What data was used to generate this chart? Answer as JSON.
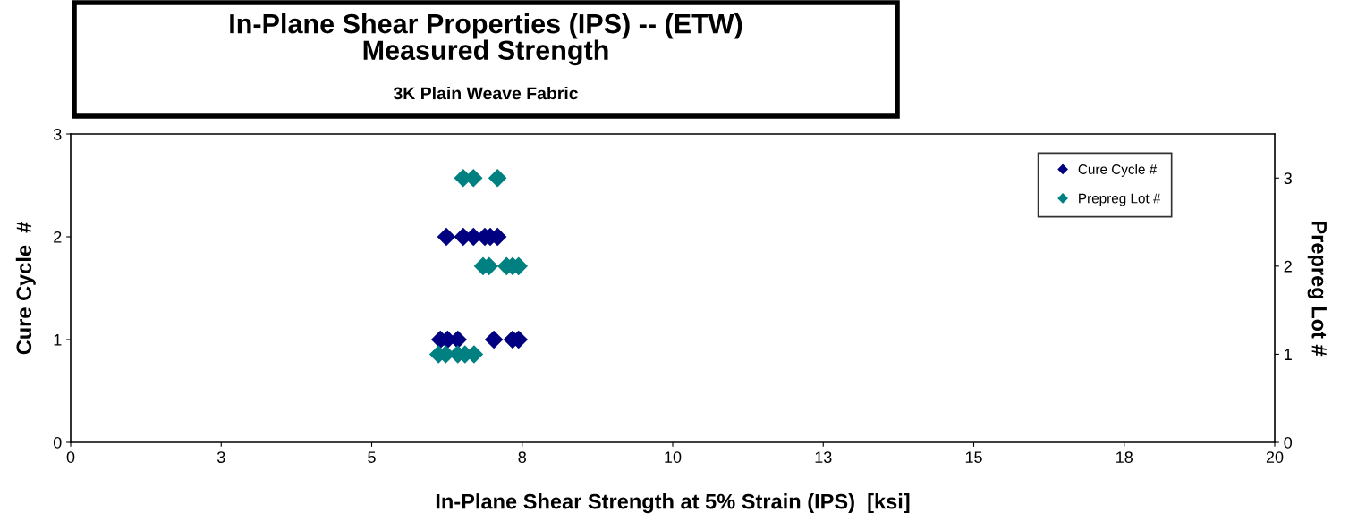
{
  "chart_data": {
    "type": "scatter",
    "title": "In-Plane Shear Properties (IPS) -- (ETW)\nMeasured Strength",
    "subtitle": "3K Plain Weave Fabric",
    "xlabel": "In-Plane Shear Strength at 5% Strain (IPS)  [ksi]",
    "ylabel": "Cure Cycle  #",
    "y2label": "Prepreg Lot #",
    "xlim": [
      0,
      20
    ],
    "xticks": [
      0,
      {
        "value": 2.5,
        "label": "3"
      },
      5,
      {
        "value": 7.5,
        "label": "8"
      },
      10,
      {
        "value": 12.5,
        "label": "13"
      },
      15,
      {
        "value": 17.5,
        "label": "18"
      },
      20
    ],
    "ylim": [
      0,
      3
    ],
    "yticks": [
      0,
      1,
      2,
      3
    ],
    "y2lim": [
      0,
      3.5
    ],
    "y2ticks": [
      0,
      1,
      2,
      3
    ],
    "marker": "diamond",
    "grid": false,
    "legend": "top right",
    "series": [
      {
        "name": "Cure Cycle #",
        "color": "#000080",
        "x": [
          6.24,
          6.52,
          6.69,
          6.88,
          6.97,
          7.09,
          6.14,
          6.26,
          6.43,
          7.03,
          7.27,
          7.34,
          7.44
        ],
        "values": [
          2,
          2,
          2,
          2,
          2,
          2,
          1,
          1,
          1,
          1,
          null,
          1,
          1
        ]
      },
      {
        "name": "Prepreg Lot #",
        "color": "#008080",
        "axis": "y2",
        "x": [
          6.52,
          6.69,
          7.09,
          6.85,
          6.95,
          7.24,
          7.34,
          7.44,
          6.11,
          6.23,
          6.43,
          6.55,
          6.7
        ],
        "values": [
          3,
          3,
          3,
          2,
          2,
          2,
          2,
          2,
          1,
          1,
          1,
          1,
          1
        ]
      }
    ]
  }
}
